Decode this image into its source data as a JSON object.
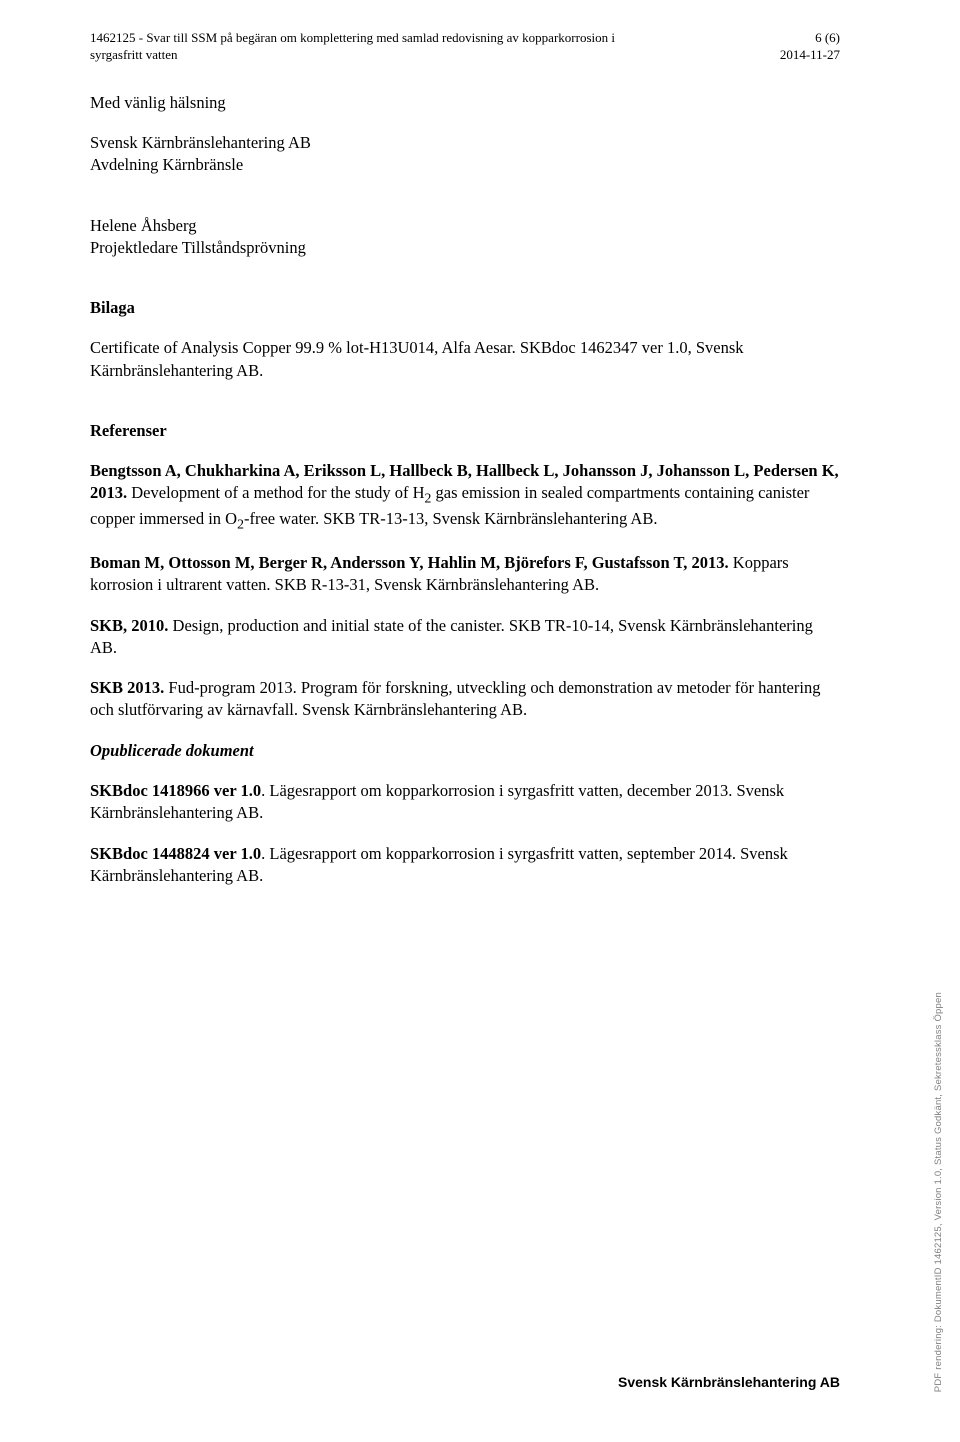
{
  "header": {
    "doc_title_line1": "1462125  -  Svar till SSM på begäran om komplettering med samlad redovisning av kopparkorrosion i",
    "doc_title_line2": "syrgasfritt vatten",
    "page_info": "6 (6)",
    "date": "2014-11-27"
  },
  "salutation": "Med vänlig hälsning",
  "sender": {
    "company": "Svensk Kärnbränslehantering AB",
    "department": "Avdelning Kärnbränsle",
    "name": "Helene Åhsberg",
    "role": "Projektledare Tillståndsprövning"
  },
  "attachment": {
    "heading": "Bilaga",
    "text": "Certificate of Analysis Copper 99.9 % lot-H13U014, Alfa Aesar. SKBdoc 1462347 ver 1.0, Svensk Kärnbränslehantering AB."
  },
  "references": {
    "heading": "Referenser",
    "items": [
      {
        "bold": "Bengtsson A, Chukharkina A, Eriksson L, Hallbeck B, Hallbeck L, Johansson J, Johansson L, Pedersen K, 2013.",
        "rest": " Development of a method for the study of H",
        "sub": "2",
        "mid": " gas emission in sealed compartments containing canister copper immersed in O",
        "sub2": "2",
        "rest2": "-free water. SKB TR-13-13, Svensk Kärnbränslehantering AB."
      },
      {
        "bold": "Boman M, Ottosson M, Berger R, Andersson Y, Hahlin M, Björefors F, Gustafsson T, 2013.",
        "rest": " Koppars korrosion i ultrarent vatten. SKB R-13-31, Svensk Kärnbränslehantering AB."
      },
      {
        "bold": "SKB, 2010.",
        "rest": " Design, production and initial state of the canister. SKB TR-10-14, Svensk Kärnbränslehantering AB."
      },
      {
        "bold": "SKB 2013.",
        "rest": " Fud-program 2013. Program för forskning, utveckling och demonstration av metoder för hantering och slutförvaring av kärnavfall. Svensk Kärnbränslehantering AB."
      }
    ]
  },
  "unpublished": {
    "heading": "Opublicerade dokument",
    "items": [
      {
        "bold": "SKBdoc 1418966 ver 1.0",
        "rest": ". Lägesrapport om kopparkorrosion i syrgasfritt vatten, december 2013. Svensk Kärnbränslehantering AB."
      },
      {
        "bold": "SKBdoc 1448824 ver 1.0",
        "rest": ". Lägesrapport om kopparkorrosion i syrgasfritt vatten, september 2014. Svensk Kärnbränslehantering AB."
      }
    ]
  },
  "footer_company": "Svensk Kärnbränslehantering AB",
  "side_text": "PDF rendering: DokumentID 1462125, Version 1.0, Status Godkänt, Sekretessklass Öppen"
}
